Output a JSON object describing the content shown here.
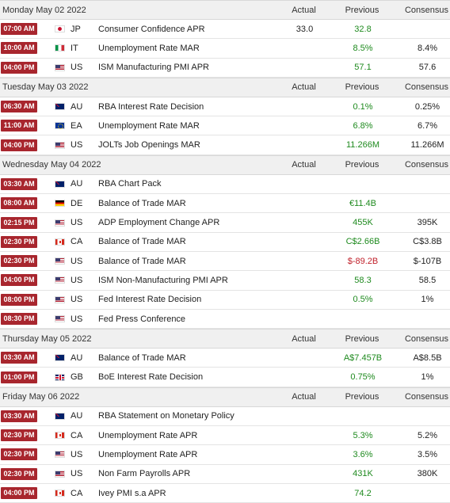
{
  "columns": {
    "actual": "Actual",
    "previous": "Previous",
    "consensus": "Consensus"
  },
  "days": [
    {
      "date": "Monday May 02 2022",
      "events": [
        {
          "time": "07:00 AM",
          "flag": "jp",
          "country": "JP",
          "event": "Consumer Confidence APR",
          "actual": "33.0",
          "previous": "32.8",
          "previous_color": "green",
          "consensus": ""
        },
        {
          "time": "10:00 AM",
          "flag": "it",
          "country": "IT",
          "event": "Unemployment Rate MAR",
          "actual": "",
          "previous": "8.5%",
          "previous_color": "green",
          "consensus": "8.4%"
        },
        {
          "time": "04:00 PM",
          "flag": "us",
          "country": "US",
          "event": "ISM Manufacturing PMI APR",
          "actual": "",
          "previous": "57.1",
          "previous_color": "green",
          "consensus": "57.6"
        }
      ]
    },
    {
      "date": "Tuesday May 03 2022",
      "events": [
        {
          "time": "06:30 AM",
          "flag": "au",
          "country": "AU",
          "event": "RBA Interest Rate Decision",
          "actual": "",
          "previous": "0.1%",
          "previous_color": "green",
          "consensus": "0.25%"
        },
        {
          "time": "11:00 AM",
          "flag": "ea",
          "country": "EA",
          "event": "Unemployment Rate MAR",
          "actual": "",
          "previous": "6.8%",
          "previous_color": "green",
          "consensus": "6.7%"
        },
        {
          "time": "04:00 PM",
          "flag": "us",
          "country": "US",
          "event": "JOLTs Job Openings MAR",
          "actual": "",
          "previous": "11.266M",
          "previous_color": "green",
          "consensus": "11.266M"
        }
      ]
    },
    {
      "date": "Wednesday May 04 2022",
      "events": [
        {
          "time": "03:30 AM",
          "flag": "au",
          "country": "AU",
          "event": "RBA Chart Pack",
          "actual": "",
          "previous": "",
          "previous_color": "green",
          "consensus": ""
        },
        {
          "time": "08:00 AM",
          "flag": "de",
          "country": "DE",
          "event": "Balance of Trade MAR",
          "actual": "",
          "previous": "€11.4B",
          "previous_color": "green",
          "consensus": ""
        },
        {
          "time": "02:15 PM",
          "flag": "us",
          "country": "US",
          "event": "ADP Employment Change APR",
          "actual": "",
          "previous": "455K",
          "previous_color": "green",
          "consensus": "395K"
        },
        {
          "time": "02:30 PM",
          "flag": "ca",
          "country": "CA",
          "event": "Balance of Trade MAR",
          "actual": "",
          "previous": "C$2.66B",
          "previous_color": "green",
          "consensus": "C$3.8B"
        },
        {
          "time": "02:30 PM",
          "flag": "us",
          "country": "US",
          "event": "Balance of Trade MAR",
          "actual": "",
          "previous": "$-89.2B",
          "previous_color": "red",
          "consensus": "$-107B"
        },
        {
          "time": "04:00 PM",
          "flag": "us",
          "country": "US",
          "event": "ISM Non-Manufacturing PMI APR",
          "actual": "",
          "previous": "58.3",
          "previous_color": "green",
          "consensus": "58.5"
        },
        {
          "time": "08:00 PM",
          "flag": "us",
          "country": "US",
          "event": "Fed Interest Rate Decision",
          "actual": "",
          "previous": "0.5%",
          "previous_color": "green",
          "consensus": "1%"
        },
        {
          "time": "08:30 PM",
          "flag": "us",
          "country": "US",
          "event": "Fed Press Conference",
          "actual": "",
          "previous": "",
          "previous_color": "green",
          "consensus": ""
        }
      ]
    },
    {
      "date": "Thursday May 05 2022",
      "events": [
        {
          "time": "03:30 AM",
          "flag": "au",
          "country": "AU",
          "event": "Balance of Trade MAR",
          "actual": "",
          "previous": "A$7.457B",
          "previous_color": "green",
          "consensus": "A$8.5B"
        },
        {
          "time": "01:00 PM",
          "flag": "gb",
          "country": "GB",
          "event": "BoE Interest Rate Decision",
          "actual": "",
          "previous": "0.75%",
          "previous_color": "green",
          "consensus": "1%"
        }
      ]
    },
    {
      "date": "Friday May 06 2022",
      "events": [
        {
          "time": "03:30 AM",
          "flag": "au",
          "country": "AU",
          "event": "RBA Statement on Monetary Policy",
          "actual": "",
          "previous": "",
          "previous_color": "green",
          "consensus": ""
        },
        {
          "time": "02:30 PM",
          "flag": "ca",
          "country": "CA",
          "event": "Unemployment Rate APR",
          "actual": "",
          "previous": "5.3%",
          "previous_color": "green",
          "consensus": "5.2%"
        },
        {
          "time": "02:30 PM",
          "flag": "us",
          "country": "US",
          "event": "Unemployment Rate APR",
          "actual": "",
          "previous": "3.6%",
          "previous_color": "green",
          "consensus": "3.5%"
        },
        {
          "time": "02:30 PM",
          "flag": "us",
          "country": "US",
          "event": "Non Farm Payrolls APR",
          "actual": "",
          "previous": "431K",
          "previous_color": "green",
          "consensus": "380K"
        },
        {
          "time": "04:00 PM",
          "flag": "ca",
          "country": "CA",
          "event": "Ivey PMI s.a APR",
          "actual": "",
          "previous": "74.2",
          "previous_color": "green",
          "consensus": ""
        }
      ]
    }
  ]
}
